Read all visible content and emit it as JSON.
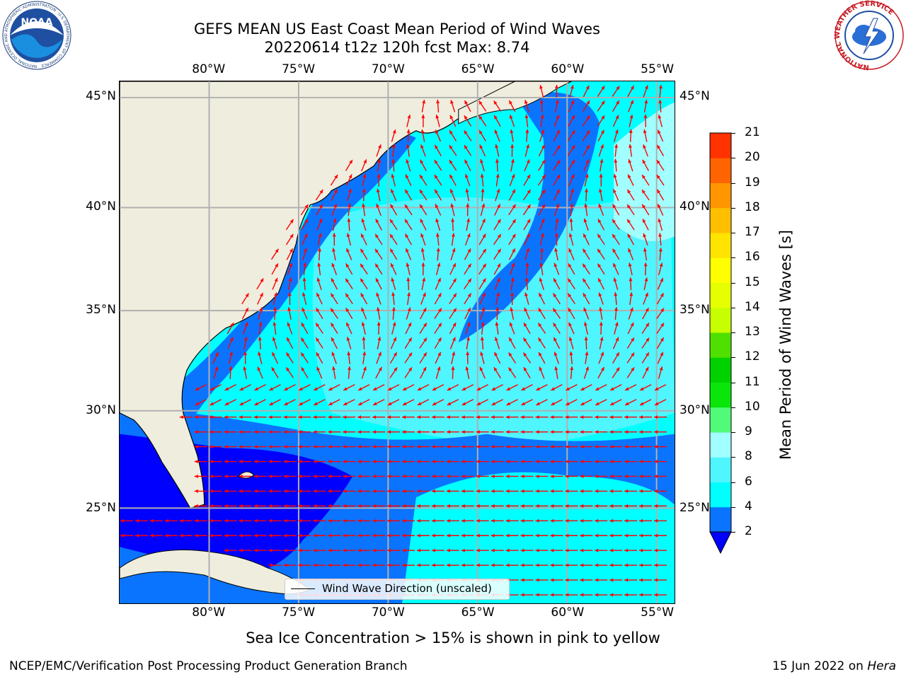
{
  "header": {
    "title_line1": "GEFS MEAN US East Coast Mean Period of Wind Waves",
    "title_line2": "20220614 t12z 120h fcst   Max: 8.74"
  },
  "logos": {
    "noaa_text": "NOAA",
    "noaa_ring_text": "NATIONAL OCEANIC AND ATMOSPHERIC ADMINISTRATION · U.S. DEPARTMENT OF COMMERCE",
    "nws_ring_text": "NATIONAL WEATHER SERVICE"
  },
  "map": {
    "lon_labels": [
      "80°W",
      "75°W",
      "70°W",
      "65°W",
      "60°W",
      "55°W"
    ],
    "lat_labels": [
      "45°N",
      "40°N",
      "35°N",
      "30°N",
      "25°N"
    ],
    "lon_range": [
      -85,
      -54
    ],
    "lat_range": [
      20,
      46
    ],
    "land_color": "#efedde",
    "ocean_base_color": "#00ffff",
    "arrow_color": "#ff0000",
    "legend_label": "Wind Wave Direction (unscaled)"
  },
  "colorbar": {
    "label": "Mean Period of Wind Waves [s]",
    "tick_labels": [
      "2",
      "4",
      "6",
      "8",
      "9",
      "10",
      "11",
      "12",
      "13",
      "14",
      "15",
      "16",
      "17",
      "18",
      "19",
      "20",
      "21"
    ],
    "colors": [
      "#0a74ff",
      "#00ffff",
      "#4ff5ff",
      "#a2ffff",
      "#52fa7a",
      "#0ae60a",
      "#00d200",
      "#50e000",
      "#c8ff00",
      "#e6ff00",
      "#ffff00",
      "#ffe400",
      "#ffbe00",
      "#ff9600",
      "#ff6400",
      "#ff3200",
      "#ff0000"
    ],
    "under_color": "#0000ff"
  },
  "subtitle": "Sea Ice Concentration > 15% is shown in pink to yellow",
  "footer": {
    "left": "NCEP/EMC/Verification Post Processing Product Generation Branch",
    "right_date": "15 Jun 2022 on ",
    "right_host": "Hera"
  }
}
